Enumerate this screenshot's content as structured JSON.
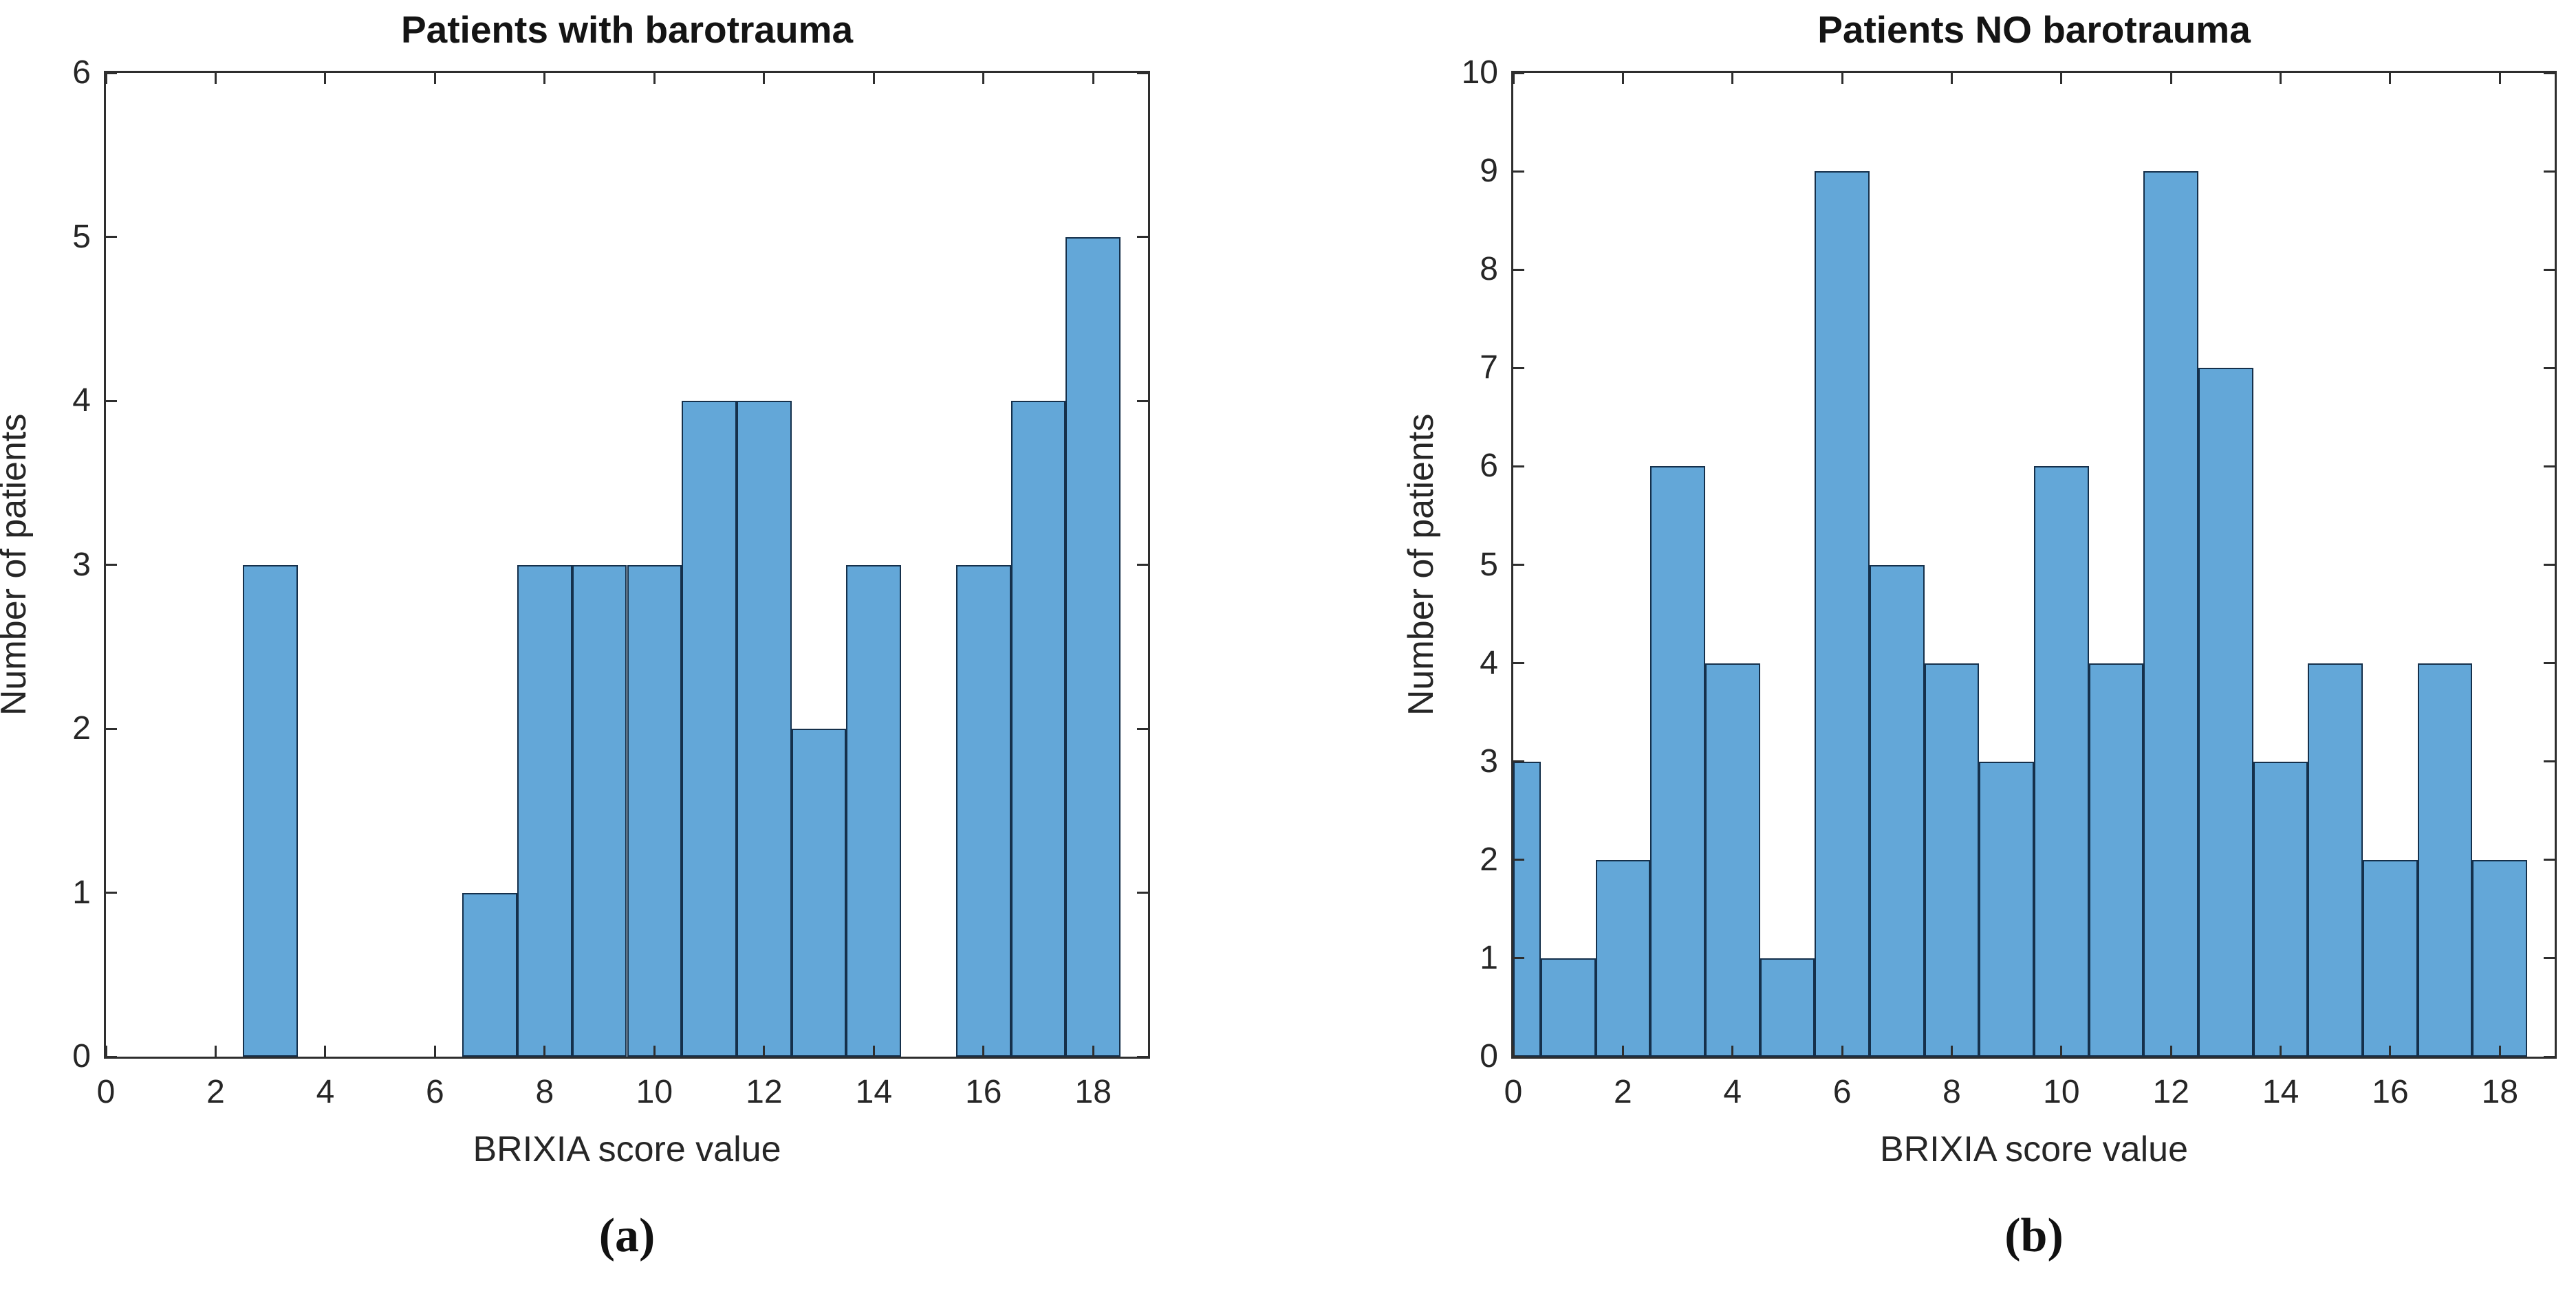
{
  "styles": {
    "bar_fill": "#63a7d8",
    "bar_edge": "#15304b",
    "axis_color": "#2e2e2e",
    "tick_label_color": "#262626"
  },
  "chart_data": [
    {
      "type": "bar",
      "subtype": "histogram",
      "panel": "a",
      "title": "Patients with barotrauma",
      "xlabel": "BRIXIA score value",
      "ylabel": "Number of patients",
      "caption": "(a)",
      "xlim": [
        0,
        19
      ],
      "ylim": [
        0,
        6
      ],
      "grid": false,
      "legend": null,
      "xticks": [
        0,
        2,
        4,
        6,
        8,
        10,
        12,
        14,
        16,
        18
      ],
      "yticks": [
        0,
        1,
        2,
        3,
        4,
        5,
        6
      ],
      "bins": [
        {
          "x0": 2.5,
          "x1": 3.5,
          "count": 3
        },
        {
          "x0": 6.5,
          "x1": 7.5,
          "count": 1
        },
        {
          "x0": 7.5,
          "x1": 8.5,
          "count": 3
        },
        {
          "x0": 8.5,
          "x1": 9.5,
          "count": 3
        },
        {
          "x0": 9.5,
          "x1": 10.5,
          "count": 3
        },
        {
          "x0": 10.5,
          "x1": 11.5,
          "count": 4
        },
        {
          "x0": 11.5,
          "x1": 12.5,
          "count": 4
        },
        {
          "x0": 12.5,
          "x1": 13.5,
          "count": 2
        },
        {
          "x0": 13.5,
          "x1": 14.5,
          "count": 3
        },
        {
          "x0": 15.5,
          "x1": 16.5,
          "count": 3
        },
        {
          "x0": 16.5,
          "x1": 17.5,
          "count": 4
        },
        {
          "x0": 17.5,
          "x1": 18.5,
          "count": 5
        }
      ]
    },
    {
      "type": "bar",
      "subtype": "histogram",
      "panel": "b",
      "title": "Patients NO barotrauma",
      "xlabel": "BRIXIA score value",
      "ylabel": "Number of patients",
      "caption": "(b)",
      "xlim": [
        0,
        19
      ],
      "ylim": [
        0,
        10
      ],
      "grid": false,
      "legend": null,
      "xticks": [
        0,
        2,
        4,
        6,
        8,
        10,
        12,
        14,
        16,
        18
      ],
      "yticks": [
        0,
        1,
        2,
        3,
        4,
        5,
        6,
        7,
        8,
        9,
        10
      ],
      "bins": [
        {
          "x0": 0,
          "x1": 0.5,
          "count": 3
        },
        {
          "x0": 0.5,
          "x1": 1.5,
          "count": 1
        },
        {
          "x0": 1.5,
          "x1": 2.5,
          "count": 2
        },
        {
          "x0": 2.5,
          "x1": 3.5,
          "count": 6
        },
        {
          "x0": 3.5,
          "x1": 4.5,
          "count": 4
        },
        {
          "x0": 4.5,
          "x1": 5.5,
          "count": 1
        },
        {
          "x0": 5.5,
          "x1": 6.5,
          "count": 9
        },
        {
          "x0": 6.5,
          "x1": 7.5,
          "count": 5
        },
        {
          "x0": 7.5,
          "x1": 8.5,
          "count": 4
        },
        {
          "x0": 8.5,
          "x1": 9.5,
          "count": 3
        },
        {
          "x0": 9.5,
          "x1": 10.5,
          "count": 6
        },
        {
          "x0": 10.5,
          "x1": 11.5,
          "count": 4
        },
        {
          "x0": 11.5,
          "x1": 12.5,
          "count": 9
        },
        {
          "x0": 12.5,
          "x1": 13.5,
          "count": 7
        },
        {
          "x0": 13.5,
          "x1": 14.5,
          "count": 3
        },
        {
          "x0": 14.5,
          "x1": 15.5,
          "count": 4
        },
        {
          "x0": 15.5,
          "x1": 16.5,
          "count": 2
        },
        {
          "x0": 16.5,
          "x1": 17.5,
          "count": 4
        },
        {
          "x0": 17.5,
          "x1": 18.5,
          "count": 2
        }
      ]
    }
  ]
}
